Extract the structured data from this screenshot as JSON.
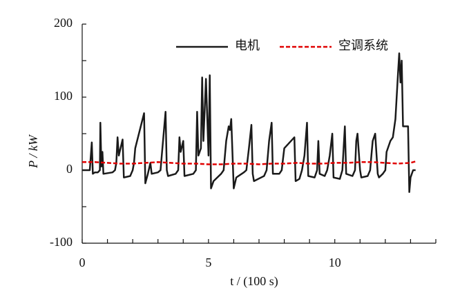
{
  "chart_data": {
    "type": "line",
    "xlabel": "t / (100 s)",
    "ylabel": "P / kW",
    "xlim": [
      0,
      14
    ],
    "ylim": [
      -100,
      200
    ],
    "xticks": [
      0,
      5,
      10
    ],
    "xminor_ticks": [
      1,
      2,
      3,
      4,
      6,
      7,
      8,
      9,
      11,
      12,
      13,
      14
    ],
    "yticks": [
      -100,
      0,
      100,
      200
    ],
    "yminor_ticks": [
      -50,
      50,
      150
    ],
    "legend": "top-right",
    "series": [
      {
        "name": "电机",
        "color": "#1a1a1a",
        "dash": false,
        "x": [
          0,
          0.3,
          0.38,
          0.42,
          0.5,
          0.62,
          0.7,
          0.72,
          0.76,
          0.8,
          0.84,
          1.2,
          1.3,
          1.35,
          1.4,
          1.45,
          1.6,
          1.65,
          1.9,
          2.0,
          2.05,
          2.1,
          2.45,
          2.5,
          2.6,
          2.7,
          2.75,
          3.0,
          3.1,
          3.15,
          3.3,
          3.35,
          3.4,
          3.7,
          3.8,
          3.85,
          3.9,
          4.0,
          4.05,
          4.4,
          4.5,
          4.55,
          4.6,
          4.7,
          4.75,
          4.8,
          4.9,
          5.0,
          5.05,
          5.1,
          5.2,
          5.5,
          5.6,
          5.7,
          5.8,
          5.85,
          5.9,
          6.0,
          6.1,
          6.4,
          6.5,
          6.6,
          6.7,
          6.75,
          6.8,
          7.2,
          7.3,
          7.4,
          7.5,
          7.55,
          7.8,
          7.9,
          7.95,
          8.0,
          8.4,
          8.45,
          8.6,
          8.7,
          8.8,
          8.9,
          8.95,
          9.2,
          9.3,
          9.35,
          9.4,
          9.6,
          9.7,
          9.8,
          9.9,
          9.95,
          10.2,
          10.3,
          10.35,
          10.4,
          10.45,
          10.7,
          10.8,
          10.85,
          10.9,
          11.0,
          11.05,
          11.3,
          11.4,
          11.45,
          11.5,
          11.6,
          11.7,
          11.75,
          11.9,
          12.0,
          12.05,
          12.2,
          12.3,
          12.4,
          12.5,
          12.55,
          12.6,
          12.65,
          12.7,
          12.9,
          12.95,
          13.0,
          13.1,
          13.2
        ],
        "values": [
          0,
          0,
          38,
          -5,
          -3,
          -3,
          0,
          65,
          5,
          25,
          -5,
          -3,
          0,
          10,
          45,
          20,
          42,
          -10,
          -8,
          0,
          10,
          30,
          78,
          -18,
          -5,
          10,
          -5,
          -3,
          0,
          20,
          80,
          0,
          -8,
          -5,
          0,
          45,
          25,
          40,
          -8,
          -5,
          0,
          80,
          20,
          30,
          127,
          40,
          125,
          20,
          130,
          -25,
          -15,
          -5,
          0,
          40,
          60,
          55,
          70,
          -25,
          -10,
          -3,
          0,
          30,
          62,
          -5,
          -15,
          -8,
          0,
          40,
          65,
          -5,
          -5,
          0,
          15,
          30,
          45,
          -15,
          -12,
          0,
          20,
          65,
          -8,
          -10,
          0,
          40,
          -5,
          -8,
          0,
          20,
          50,
          -10,
          -12,
          0,
          30,
          60,
          -5,
          -8,
          0,
          40,
          50,
          0,
          -10,
          -8,
          0,
          20,
          40,
          50,
          -5,
          -10,
          -5,
          0,
          25,
          40,
          45,
          70,
          130,
          160,
          120,
          150,
          60,
          60,
          -30,
          -10,
          0,
          0
        ]
      },
      {
        "name": "空调系统",
        "color": "#e00000",
        "dash": true,
        "x": [
          0,
          0.5,
          1,
          1.5,
          2,
          2.5,
          3,
          3.5,
          4,
          4.5,
          5,
          5.5,
          6,
          6.5,
          7,
          7.5,
          8,
          8.5,
          9,
          9.5,
          10,
          10.5,
          11,
          11.5,
          12,
          12.5,
          13,
          13.2
        ],
        "values": [
          11,
          11,
          10,
          9,
          9,
          10,
          11,
          10,
          9,
          9,
          8,
          8,
          9,
          9,
          8,
          9,
          9,
          10,
          9,
          9,
          10,
          10,
          11,
          11,
          10,
          9,
          10,
          12
        ]
      }
    ]
  }
}
